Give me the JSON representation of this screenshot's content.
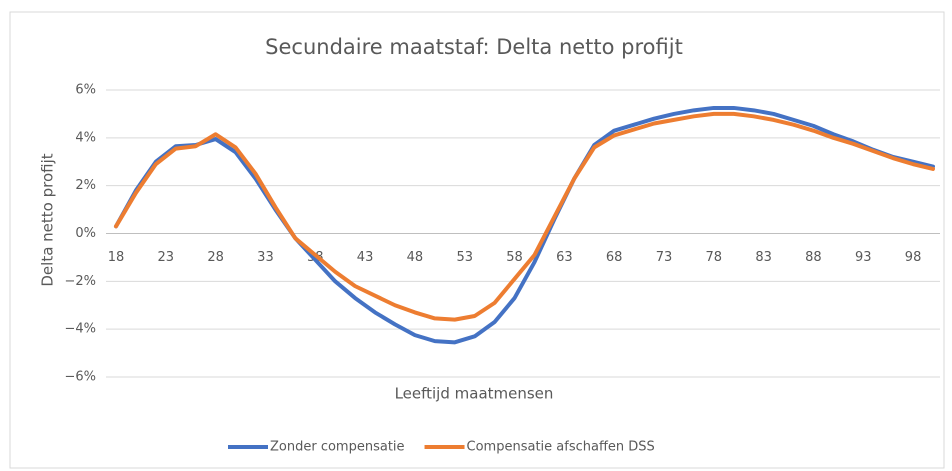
{
  "chart_data": {
    "type": "line",
    "title": "Secundaire maatstaf: Delta netto profijt",
    "x_label": "Leeftijd maatmensen",
    "y_label": "Delta netto profijt",
    "x": [
      18,
      20,
      22,
      24,
      26,
      28,
      30,
      32,
      34,
      36,
      38,
      40,
      42,
      44,
      46,
      48,
      50,
      52,
      54,
      56,
      58,
      60,
      62,
      64,
      66,
      68,
      70,
      72,
      74,
      76,
      78,
      80,
      82,
      84,
      86,
      88,
      90,
      92,
      94,
      96,
      98,
      100
    ],
    "series": [
      {
        "name": "Zonder compensatie",
        "color": "#4472c4",
        "values": [
          0.3,
          1.8,
          3.0,
          3.65,
          3.7,
          3.95,
          3.4,
          2.3,
          1.0,
          -0.2,
          -1.1,
          -2.0,
          -2.7,
          -3.3,
          -3.8,
          -4.25,
          -4.5,
          -4.55,
          -4.3,
          -3.7,
          -2.7,
          -1.2,
          0.6,
          2.3,
          3.7,
          4.3,
          4.55,
          4.8,
          5.0,
          5.15,
          5.25,
          5.25,
          5.15,
          5.0,
          4.75,
          4.5,
          4.15,
          3.85,
          3.5,
          3.2,
          3.0,
          2.8
        ]
      },
      {
        "name": "Compensatie afschaffen DSS",
        "color": "#ed7d31",
        "values": [
          0.3,
          1.7,
          2.9,
          3.55,
          3.65,
          4.15,
          3.6,
          2.5,
          1.1,
          -0.2,
          -0.9,
          -1.6,
          -2.2,
          -2.6,
          -3.0,
          -3.3,
          -3.55,
          -3.6,
          -3.45,
          -2.9,
          -1.9,
          -0.9,
          0.7,
          2.3,
          3.6,
          4.1,
          4.35,
          4.6,
          4.75,
          4.9,
          5.0,
          5.0,
          4.9,
          4.75,
          4.55,
          4.3,
          4.0,
          3.75,
          3.45,
          3.15,
          2.9,
          2.7
        ]
      }
    ],
    "xlim": [
      18,
      100
    ],
    "xticks": [
      18,
      23,
      28,
      33,
      38,
      43,
      48,
      53,
      58,
      63,
      68,
      73,
      78,
      83,
      88,
      93,
      98
    ],
    "ylim": [
      -6,
      6
    ],
    "yticks": [
      {
        "value": -6,
        "label": "−6%"
      },
      {
        "value": -4,
        "label": "−4%"
      },
      {
        "value": -2,
        "label": "−2%"
      },
      {
        "value": 0,
        "label": "0%"
      },
      {
        "value": 2,
        "label": "2%"
      },
      {
        "value": 4,
        "label": "4%"
      },
      {
        "value": 6,
        "label": "6%"
      }
    ],
    "grid": true,
    "legend": "bottom"
  }
}
